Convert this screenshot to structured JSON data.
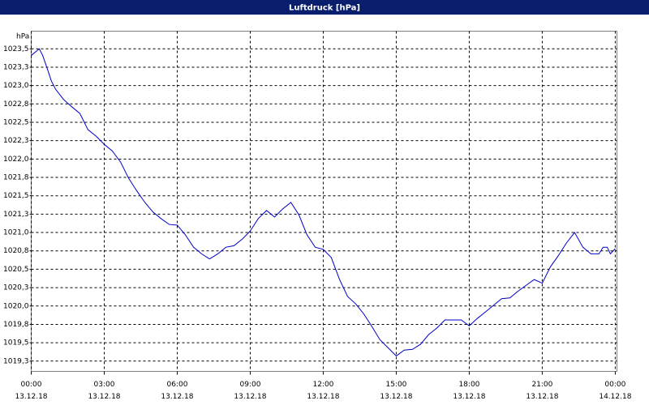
{
  "chart_data": {
    "type": "line",
    "title": "Luftdruck [hPa]",
    "y_label": "hPa",
    "x": [
      0,
      0.33,
      0.47,
      0.67,
      0.83,
      1,
      1.33,
      1.67,
      2,
      2.33,
      2.67,
      3,
      3.33,
      3.67,
      4,
      4.33,
      4.67,
      5,
      5.33,
      5.67,
      6,
      6.33,
      6.67,
      7,
      7.33,
      7.67,
      8,
      8.33,
      8.67,
      9,
      9.33,
      9.67,
      10,
      10.33,
      10.67,
      11,
      11.33,
      11.67,
      12,
      12.33,
      12.67,
      13,
      13.33,
      13.67,
      14,
      14.33,
      14.67,
      15,
      15.33,
      15.67,
      16,
      16.33,
      16.67,
      17,
      17.33,
      17.67,
      18,
      18.33,
      18.67,
      19,
      19.33,
      19.67,
      20,
      20.33,
      20.67,
      21,
      21.33,
      21.67,
      22,
      22.33,
      22.67,
      23,
      23.33,
      23.5,
      23.67,
      23.8,
      24
    ],
    "series": [
      {
        "name": "Luftdruck",
        "color": "#0000c8",
        "values": [
          1023.41,
          1023.5,
          1023.41,
          1023.22,
          1023.06,
          1022.95,
          1022.81,
          1022.71,
          1022.62,
          1022.4,
          1022.31,
          1022.2,
          1022.11,
          1021.96,
          1021.74,
          1021.57,
          1021.41,
          1021.28,
          1021.19,
          1021.11,
          1021.1,
          1020.97,
          1020.8,
          1020.71,
          1020.64,
          1020.71,
          1020.8,
          1020.82,
          1020.91,
          1021.02,
          1021.19,
          1021.3,
          1021.21,
          1021.32,
          1021.41,
          1021.24,
          1020.97,
          1020.8,
          1020.77,
          1020.66,
          1020.36,
          1020.13,
          1020.03,
          1019.89,
          1019.72,
          1019.54,
          1019.43,
          1019.32,
          1019.4,
          1019.41,
          1019.48,
          1019.61,
          1019.7,
          1019.81,
          1019.81,
          1019.81,
          1019.73,
          1019.83,
          1019.92,
          1020.01,
          1020.1,
          1020.11,
          1020.2,
          1020.28,
          1020.36,
          1020.31,
          1020.53,
          1020.69,
          1020.86,
          1021.0,
          1020.8,
          1020.71,
          1020.71,
          1020.8,
          1020.8,
          1020.71,
          1020.78
        ]
      }
    ],
    "xlim": [
      0,
      24.07
    ],
    "ylim": [
      1019.11,
      1023.74
    ],
    "xticks": [
      {
        "value": 0,
        "label": "00:00",
        "date": "13.12.18"
      },
      {
        "value": 3,
        "label": "03:00",
        "date": "13.12.18"
      },
      {
        "value": 6,
        "label": "06:00",
        "date": "13.12.18"
      },
      {
        "value": 9,
        "label": "09:00",
        "date": "13.12.18"
      },
      {
        "value": 12,
        "label": "12:00",
        "date": "13.12.18"
      },
      {
        "value": 15,
        "label": "15:00",
        "date": "13.12.18"
      },
      {
        "value": 18,
        "label": "18:00",
        "date": "13.12.18"
      },
      {
        "value": 21,
        "label": "21:00",
        "date": "13.12.18"
      },
      {
        "value": 24,
        "label": "00:00",
        "date": "14.12.18"
      }
    ],
    "yticks": [
      {
        "value": 1023.5,
        "label": "1023,5"
      },
      {
        "value": 1023.25,
        "label": "1023,3"
      },
      {
        "value": 1023.0,
        "label": "1023,0"
      },
      {
        "value": 1022.75,
        "label": "1022,8"
      },
      {
        "value": 1022.5,
        "label": "1022,5"
      },
      {
        "value": 1022.25,
        "label": "1022,3"
      },
      {
        "value": 1022.0,
        "label": "1022,0"
      },
      {
        "value": 1021.75,
        "label": "1021,8"
      },
      {
        "value": 1021.5,
        "label": "1021,5"
      },
      {
        "value": 1021.25,
        "label": "1021,3"
      },
      {
        "value": 1021.0,
        "label": "1021,0"
      },
      {
        "value": 1020.75,
        "label": "1020,8"
      },
      {
        "value": 1020.5,
        "label": "1020,5"
      },
      {
        "value": 1020.25,
        "label": "1020,3"
      },
      {
        "value": 1020.0,
        "label": "1020,0"
      },
      {
        "value": 1019.75,
        "label": "1019,8"
      },
      {
        "value": 1019.5,
        "label": "1019,5"
      },
      {
        "value": 1019.25,
        "label": "1019,3"
      }
    ],
    "grid": true
  }
}
